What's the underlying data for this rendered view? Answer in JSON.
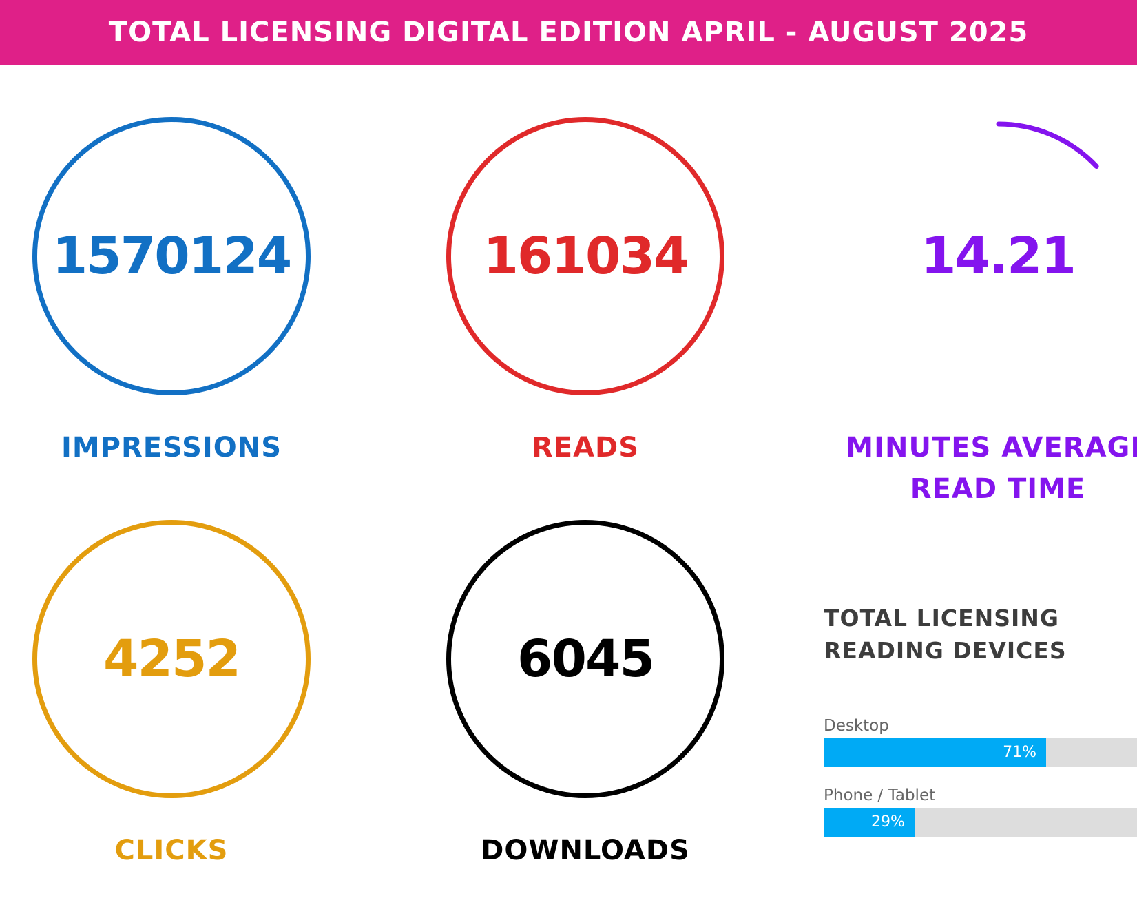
{
  "header": {
    "title": "TOTAL LICENSING DIGITAL EDITION APRIL - AUGUST 2025"
  },
  "stats": {
    "impressions": {
      "value": "1570124",
      "label": "IMPRESSIONS",
      "color": "#1270c4"
    },
    "reads": {
      "value": "161034",
      "label": "READS",
      "color": "#e0292a"
    },
    "read_time": {
      "value": "14.21",
      "label": "MINUTES AVERAGE READ TIME",
      "color": "#8414ee",
      "gauge_fraction": 0.13
    },
    "clicks": {
      "value": "4252",
      "label": "CLICKS",
      "color": "#e39d0e"
    },
    "downloads": {
      "value": "6045",
      "label": "DOWNLOADS",
      "color": "#000000"
    }
  },
  "devices": {
    "title_line1": "TOTAL LICENSING",
    "title_line2": "READING DEVICES",
    "bar_color": "#00aaf5",
    "items": [
      {
        "label": "Desktop",
        "percent_text": "71%",
        "percent": 71
      },
      {
        "label": "Phone / Tablet",
        "percent_text": "29%",
        "percent": 29
      }
    ]
  }
}
